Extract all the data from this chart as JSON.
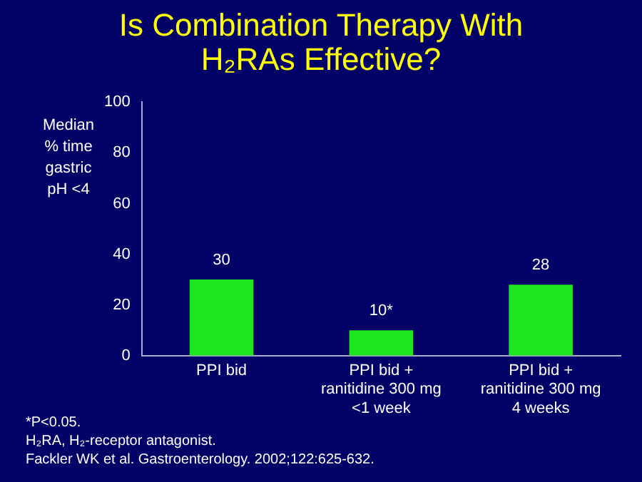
{
  "chart_data": {
    "type": "bar",
    "title": "Is Combination Therapy With\nH₂RAs Effective?",
    "ylabel": "Median\n% time\ngastric\npH <4",
    "categories": [
      "PPI bid",
      "PPI bid +\nranitidine 300 mg\n<1 week",
      "PPI bid +\nranitidine 300 mg\n4 weeks"
    ],
    "values": [
      30,
      10,
      28
    ],
    "value_labels": [
      "30",
      "10*",
      "28"
    ],
    "color": "#1ee61e",
    "ylim": [
      0,
      100
    ],
    "yticks": [
      0,
      20,
      40,
      60,
      80,
      100
    ],
    "grid": false,
    "annotations": [
      "*P<0.05.",
      "H₂RA, H₂-receptor antagonist.",
      "Fackler WK et al. Gastroenterology. 2002;122:625-632."
    ]
  }
}
